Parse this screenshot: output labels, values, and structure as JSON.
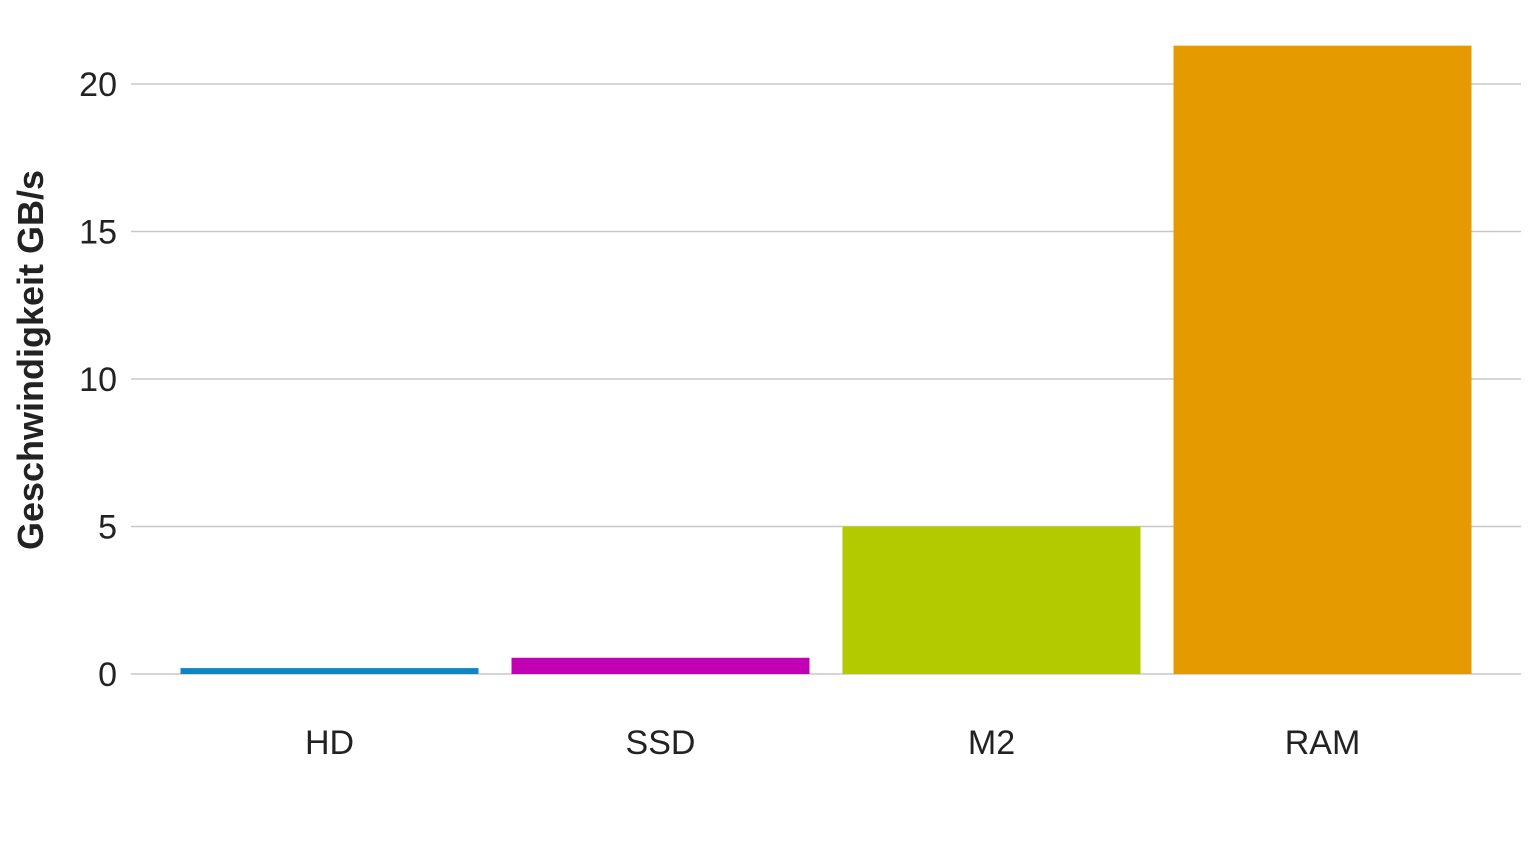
{
  "chart_data": {
    "type": "bar",
    "title": "",
    "xlabel": "",
    "ylabel": "Geschwindigkeit GB/s",
    "categories": [
      "HD",
      "SSD",
      "M2",
      "RAM"
    ],
    "values": [
      0.2,
      0.55,
      5.0,
      21.3
    ],
    "colors": [
      "#0c87c4",
      "#c400b4",
      "#b3c900",
      "#e59a00"
    ],
    "ylim": [
      0,
      22
    ],
    "yticks": [
      0,
      5,
      10,
      15,
      20
    ],
    "grid": true,
    "legend": "none"
  }
}
